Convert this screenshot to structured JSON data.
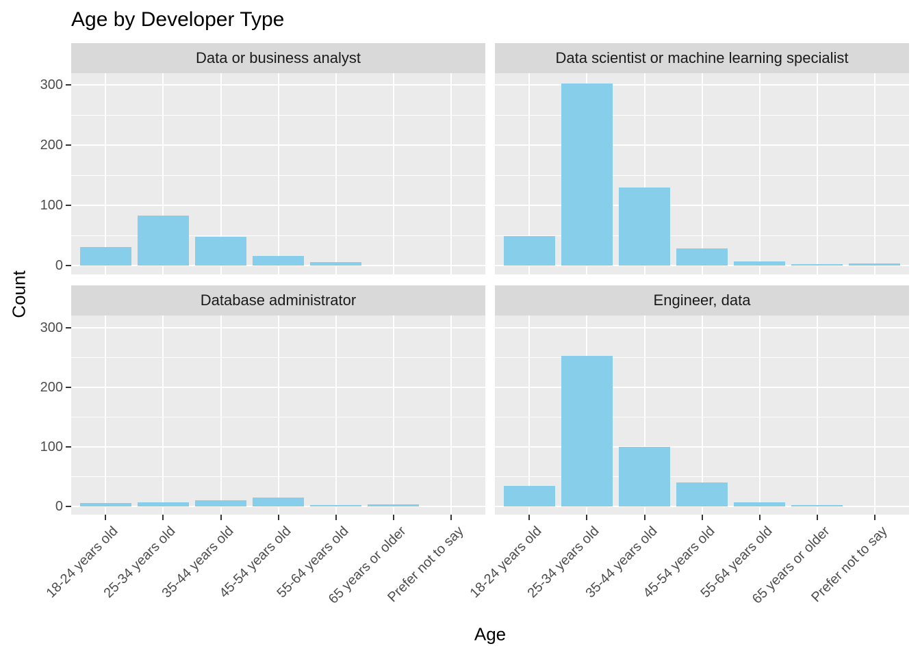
{
  "chart_data": {
    "type": "bar",
    "title": "Age by Developer Type",
    "xlabel": "Age",
    "ylabel": "Count",
    "layout": "2x2 facet grid",
    "legend": "none",
    "grid": "on",
    "categories": [
      "18-24 years old",
      "25-34 years old",
      "35-44 years old",
      "45-54 years old",
      "55-64 years old",
      "65 years or older",
      "Prefer not to say"
    ],
    "facets": [
      {
        "label": "Data or business analyst",
        "values": [
          31,
          83,
          48,
          16,
          6,
          0,
          0
        ]
      },
      {
        "label": "Data scientist or machine learning specialist",
        "values": [
          49,
          302,
          129,
          28,
          7,
          2,
          3
        ]
      },
      {
        "label": "Database administrator",
        "values": [
          6,
          7,
          10,
          15,
          2,
          3,
          0
        ]
      },
      {
        "label": "Engineer, data",
        "values": [
          34,
          253,
          100,
          40,
          7,
          2,
          0
        ]
      }
    ],
    "y_ticks": [
      0,
      100,
      200,
      300
    ],
    "ylim": [
      0,
      320
    ],
    "colors": {
      "bar": "#87CEEB",
      "panel_background": "#EBEBEB",
      "strip_background": "#D9D9D9",
      "gridline": "#FFFFFF",
      "axis_text": "#4D4D4D",
      "tick_mark": "#333333",
      "title_text": "#000000"
    }
  }
}
